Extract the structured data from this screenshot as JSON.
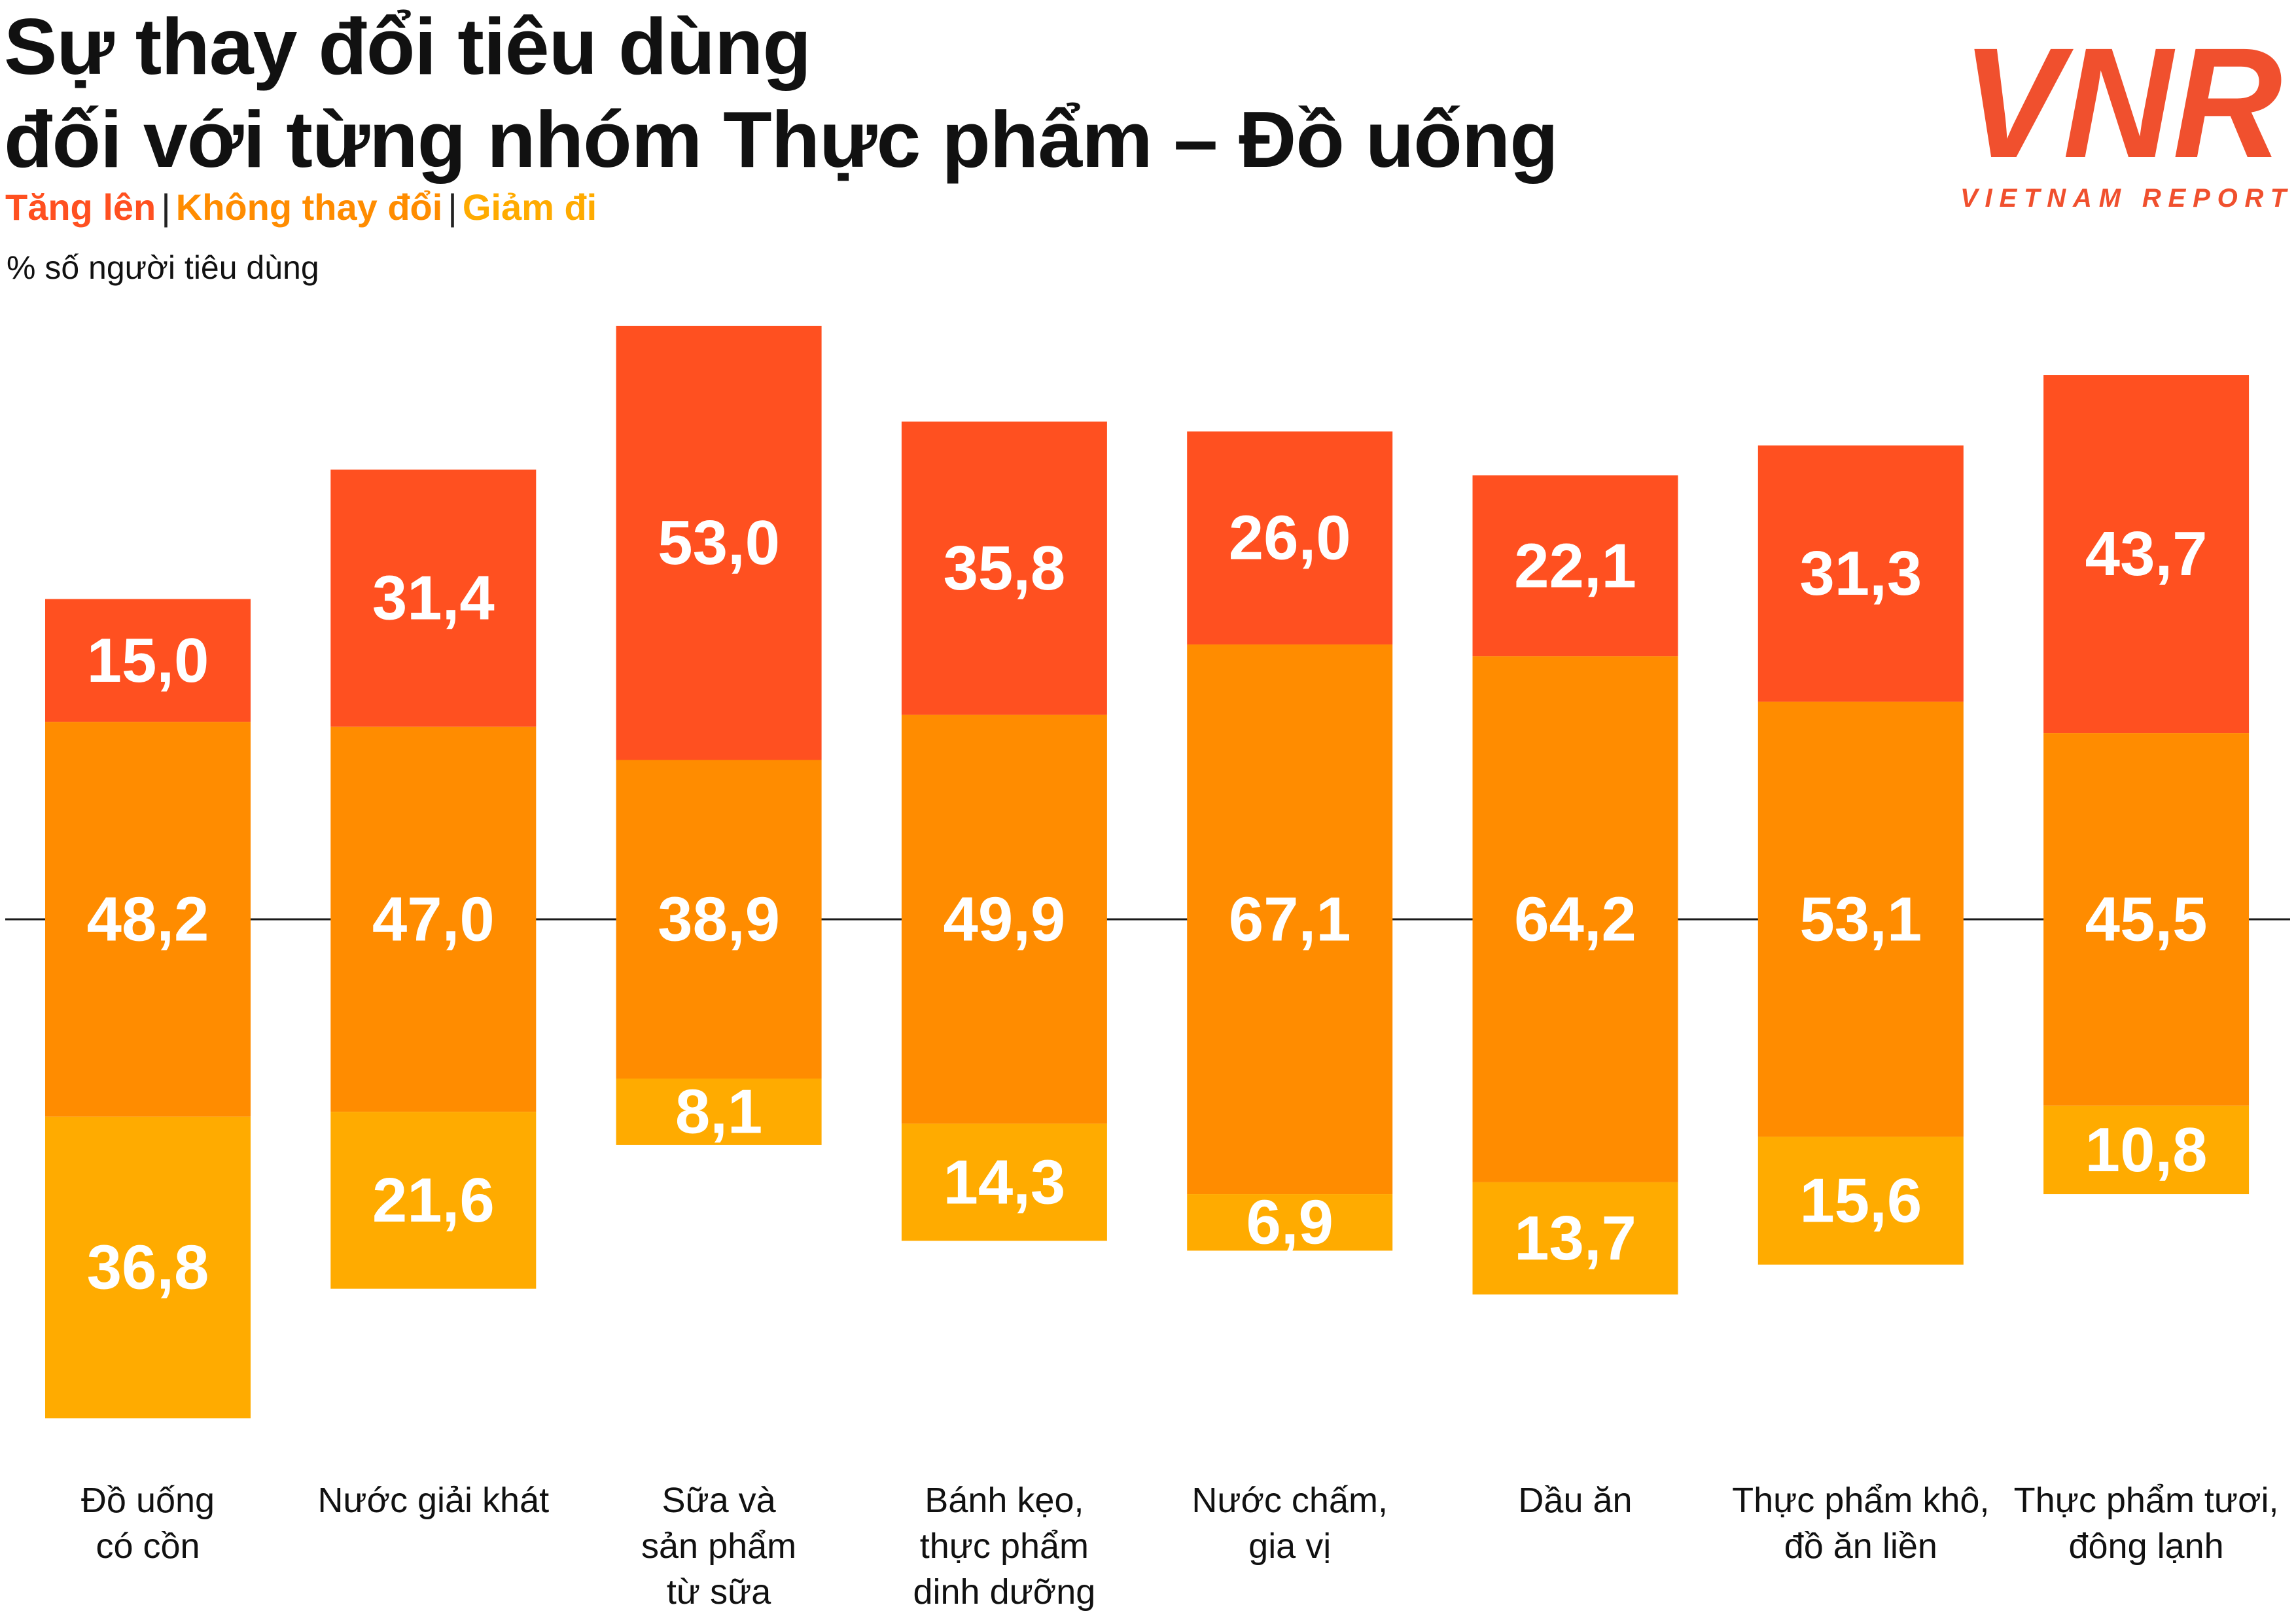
{
  "title_lines": [
    "Sự thay đổi tiêu dùng",
    "đối với từng nhóm Thực phẩm – Đồ uống"
  ],
  "legend": [
    {
      "label": "Tăng lên",
      "color": "#FF5020"
    },
    {
      "label": "Không thay đổi",
      "color": "#FF8C00"
    },
    {
      "label": "Giảm đi",
      "color": "#FFAB00"
    }
  ],
  "unit_label": "% số người tiêu dùng",
  "logo": {
    "mark": "VNR",
    "text": "VIETNAM REPORT",
    "color": "#F0502E"
  },
  "chart_data": {
    "type": "bar",
    "stacked": true,
    "centered_on": "Không thay đổi",
    "categories": [
      [
        "Đồ uống",
        "có cồn"
      ],
      [
        "Nước giải khát"
      ],
      [
        "Sữa và",
        "sản phẩm",
        "từ sữa"
      ],
      [
        "Bánh kẹo,",
        "thực phẩm",
        "dinh dưỡng"
      ],
      [
        "Nước chấm,",
        "gia vị"
      ],
      [
        "Dầu ăn"
      ],
      [
        "Thực phẩm khô,",
        "đồ ăn liền"
      ],
      [
        "Thực phẩm tươi,",
        "đông lạnh"
      ]
    ],
    "series": [
      {
        "name": "Tăng lên",
        "color": "#FF5020",
        "values": [
          15.0,
          31.4,
          53.0,
          35.8,
          26.0,
          22.1,
          31.3,
          43.7
        ],
        "labels": [
          "15,0",
          "31,4",
          "53,0",
          "35,8",
          "26,0",
          "22,1",
          "31,3",
          "43,7"
        ]
      },
      {
        "name": "Không thay đổi",
        "color": "#FF8C00",
        "values": [
          48.2,
          47.0,
          38.9,
          49.9,
          67.1,
          64.2,
          53.1,
          45.5
        ],
        "labels": [
          "48,2",
          "47,0",
          "38,9",
          "49,9",
          "67,1",
          "64,2",
          "53,1",
          "45,5"
        ]
      },
      {
        "name": "Giảm đi",
        "color": "#FFAB00",
        "values": [
          36.8,
          21.6,
          8.1,
          14.3,
          6.9,
          13.7,
          15.6,
          10.8
        ],
        "labels": [
          "36,8",
          "21,6",
          "8,1",
          "14,3",
          "6,9",
          "13,7",
          "15,6",
          "10,8"
        ]
      }
    ],
    "baseline_line": true,
    "grid": false
  }
}
